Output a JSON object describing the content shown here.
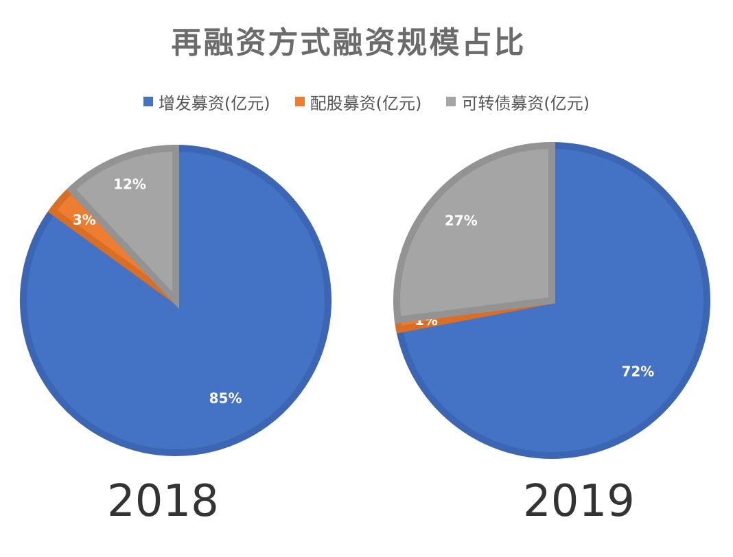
{
  "title": "再融资方式融资规模占比",
  "chart_data": {
    "type": "pie",
    "title": "再融资方式融资规模占比",
    "legend_placement": "top",
    "categories": [
      "增发募资(亿元)",
      "配股募资(亿元)",
      "可转债募资(亿元)"
    ],
    "colors": [
      "#4472C4",
      "#ED7D31",
      "#A5A5A5"
    ],
    "charts": [
      {
        "label": "2018",
        "values": [
          85,
          3,
          12
        ],
        "data_labels": [
          "85%",
          "3%",
          "12%"
        ]
      },
      {
        "label": "2019",
        "values": [
          72,
          1,
          27
        ],
        "data_labels": [
          "72%",
          "1%",
          "27%"
        ]
      }
    ]
  }
}
